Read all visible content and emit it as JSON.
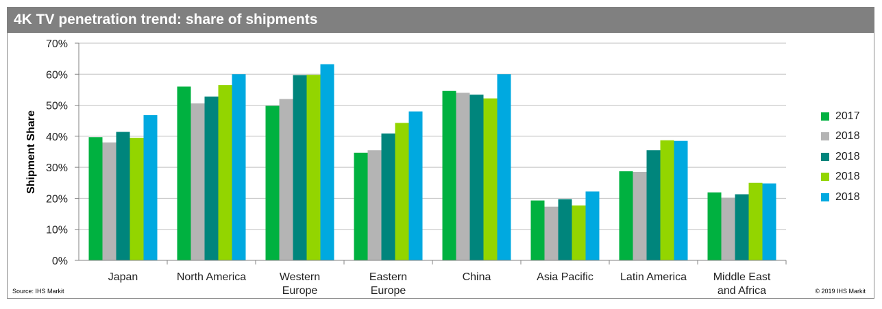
{
  "title": "4K TV penetration trend: share of shipments",
  "source": "Source: IHS Markit",
  "copyright": "© 2019 IHS Markit",
  "chart_data": {
    "type": "bar",
    "title": "4K TV penetration trend: share of shipments",
    "xlabel": "",
    "ylabel": "Shipment Share",
    "ylim": [
      0,
      70
    ],
    "yticks": [
      "0%",
      "10%",
      "20%",
      "30%",
      "40%",
      "50%",
      "60%",
      "70%"
    ],
    "grid": true,
    "legend_position": "right",
    "categories": [
      "Japan",
      "North America",
      "Western Europe",
      "Eastern Europe",
      "China",
      "Asia Pacific",
      "Latin America",
      "Middle East and Africa"
    ],
    "category_lines": [
      [
        "Japan"
      ],
      [
        "North America"
      ],
      [
        "Western",
        "Europe"
      ],
      [
        "Eastern",
        "Europe"
      ],
      [
        "China"
      ],
      [
        "Asia Pacific"
      ],
      [
        "Latin America"
      ],
      [
        "Middle East",
        "and Africa"
      ]
    ],
    "series": [
      {
        "name": "2017",
        "color": "#00b140",
        "values": [
          39.7,
          56.0,
          49.8,
          34.7,
          54.6,
          19.3,
          28.7,
          21.9
        ]
      },
      {
        "name": "2018",
        "color": "#b4b4b4",
        "values": [
          38.0,
          50.6,
          52.0,
          35.5,
          54.0,
          17.3,
          28.5,
          20.2
        ]
      },
      {
        "name": "2018",
        "color": "#00857c",
        "values": [
          41.4,
          52.8,
          59.7,
          40.9,
          53.4,
          19.7,
          35.5,
          21.3
        ]
      },
      {
        "name": "2018",
        "color": "#93d500",
        "values": [
          39.5,
          56.5,
          59.8,
          44.3,
          52.2,
          17.7,
          38.7,
          25.0
        ]
      },
      {
        "name": "2018",
        "color": "#00a9e0",
        "values": [
          46.8,
          60.0,
          63.2,
          48.0,
          60.0,
          22.2,
          38.5,
          24.8
        ]
      }
    ]
  }
}
